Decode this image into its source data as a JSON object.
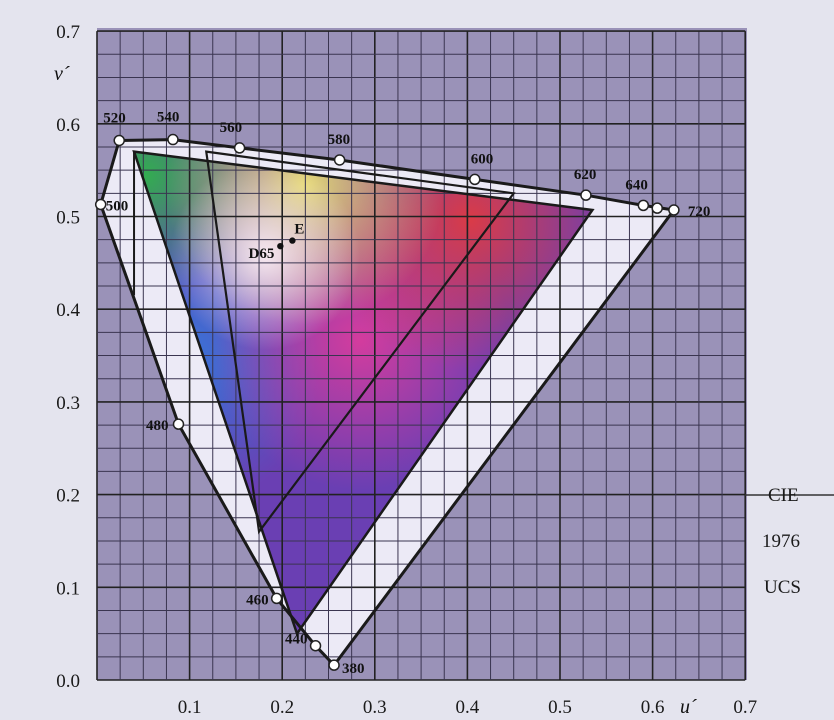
{
  "chart_data": {
    "type": "scatter",
    "xlabel": "u´",
    "ylabel": "v´",
    "xlim": [
      0,
      0.7
    ],
    "ylim": [
      0,
      0.7
    ],
    "x_ticks": [
      "0.1",
      "0.2",
      "0.3",
      "0.4",
      "0.5",
      "0.6",
      "0.7"
    ],
    "y_ticks": [
      "0.0",
      "0.1",
      "0.2",
      "0.3",
      "0.4",
      "0.5",
      "0.6",
      "0.7"
    ],
    "grid": true,
    "side_labels": [
      "CIE",
      "1976",
      "UCS"
    ],
    "wavelength_points": [
      {
        "label": "380",
        "u": 0.256,
        "v": 0.016
      },
      {
        "label": "440",
        "u": 0.236,
        "v": 0.037
      },
      {
        "label": "460",
        "u": 0.194,
        "v": 0.088
      },
      {
        "label": "480",
        "u": 0.088,
        "v": 0.276
      },
      {
        "label": "500",
        "u": 0.004,
        "v": 0.513
      },
      {
        "label": "520",
        "u": 0.024,
        "v": 0.582
      },
      {
        "label": "540",
        "u": 0.082,
        "v": 0.583
      },
      {
        "label": "560",
        "u": 0.154,
        "v": 0.574
      },
      {
        "label": "580",
        "u": 0.262,
        "v": 0.561
      },
      {
        "label": "600",
        "u": 0.408,
        "v": 0.54
      },
      {
        "label": "620",
        "u": 0.528,
        "v": 0.523
      },
      {
        "label": "640",
        "u": 0.59,
        "v": 0.512
      },
      {
        "label": "720",
        "u": 0.623,
        "v": 0.507
      }
    ],
    "white_points": [
      {
        "label": "E",
        "u": 0.211,
        "v": 0.474
      },
      {
        "label": "D65",
        "u": 0.198,
        "v": 0.468
      }
    ]
  }
}
